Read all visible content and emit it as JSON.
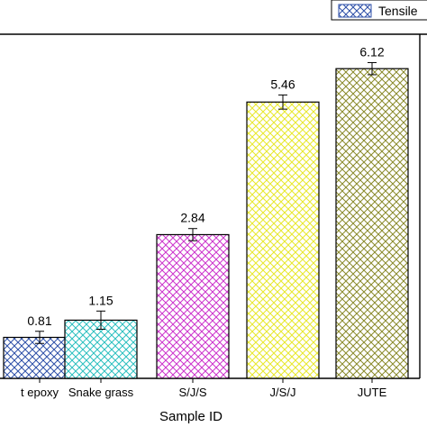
{
  "chart_data": {
    "type": "bar",
    "categories": [
      "Neat epoxy",
      "Snake grass",
      "S/J/S",
      "J/S/J",
      "JUTE"
    ],
    "category_display": [
      "t epoxy",
      "Snake grass",
      "S/J/S",
      "J/S/J",
      "JUTE"
    ],
    "values": [
      0.81,
      1.15,
      2.84,
      5.46,
      6.12
    ],
    "value_labels": [
      "0.81",
      "1.15",
      "2.84",
      "5.46",
      "6.12"
    ],
    "error": [
      0.12,
      0.18,
      0.12,
      0.14,
      0.12
    ],
    "ylim": [
      0,
      6.8
    ],
    "xlabel": "Sample ID",
    "ylabel": "",
    "legend": {
      "label": "Tensile",
      "position": "top-right"
    },
    "series_colors": [
      "#2d4fa8",
      "#2bbfbf",
      "#cc33cc",
      "#e8e82a",
      "#8a8a2a"
    ]
  }
}
